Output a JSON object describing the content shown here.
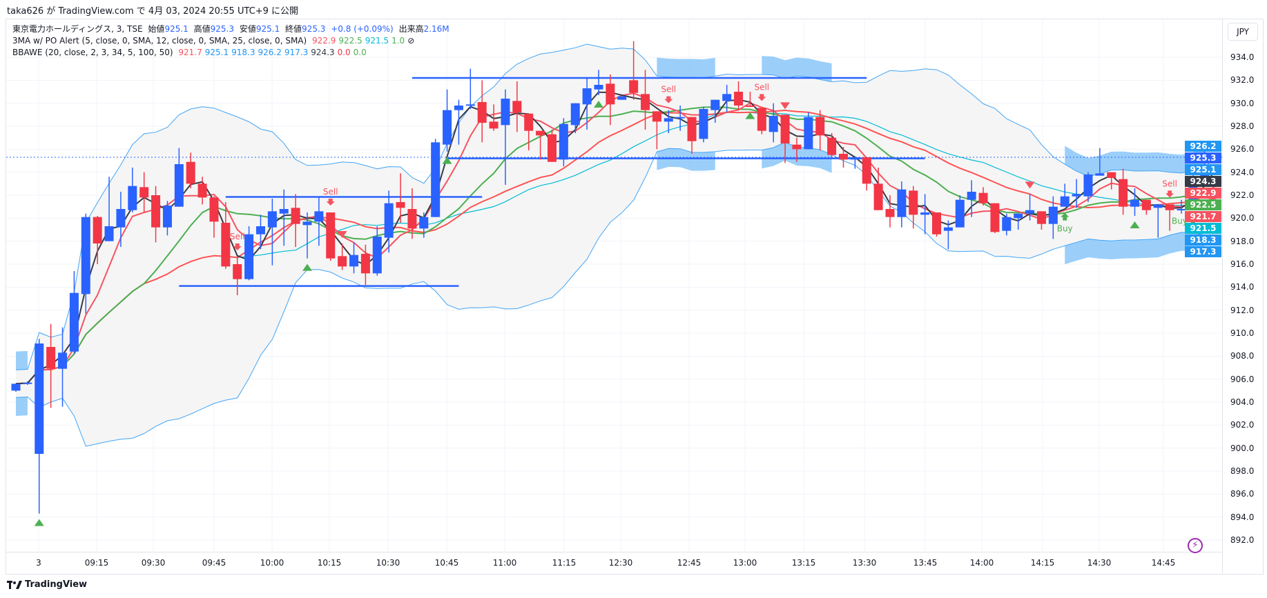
{
  "header": {
    "published": "taka626 が TradingView.com で 4月 03, 2024 20:55 UTC+9 に公開"
  },
  "legend": {
    "symbol": "東京電力ホールディングス, 3, TSE",
    "open_label": "始値",
    "open": "925.1",
    "high_label": "高値",
    "high": "925.3",
    "low_label": "安値",
    "low": "925.1",
    "close_label": "終値",
    "close": "925.3",
    "change": "+0.8 (+0.09%)",
    "volume_label": "出来高",
    "volume": "2.16M",
    "ma_name": "3MA w/ PO Alert (5, close, 0, SMA, 12, close, 0, SMA, 25, close, 0, SMA)",
    "ma_values": [
      {
        "v": "922.9",
        "c": "#f7525f"
      },
      {
        "v": "922.5",
        "c": "#4caf50"
      },
      {
        "v": "921.5",
        "c": "#00bcd4"
      },
      {
        "v": "1.0",
        "c": "#4caf50"
      }
    ],
    "ma_hidden_icon": "⊘",
    "bb_name": "BBAWE (20, close, 2, 3, 34, 5, 100, 50)",
    "bb_values": [
      {
        "v": "921.7",
        "c": "#f7525f"
      },
      {
        "v": "925.1",
        "c": "#2196f3"
      },
      {
        "v": "918.3",
        "c": "#2196f3"
      },
      {
        "v": "926.2",
        "c": "#2196f3"
      },
      {
        "v": "917.3",
        "c": "#2196f3"
      },
      {
        "v": "924.3",
        "c": "#363a45"
      },
      {
        "v": "0.0",
        "c": "#f23645"
      },
      {
        "v": "0.0",
        "c": "#4caf50"
      }
    ]
  },
  "currency_button": "JPY",
  "price_tags": [
    {
      "v": "926.2",
      "c": "#2196f3"
    },
    {
      "v": "925.3",
      "c": "#2962ff"
    },
    {
      "v": "925.1",
      "c": "#2196f3"
    },
    {
      "v": "924.3",
      "c": "#363a45"
    },
    {
      "v": "922.9",
      "c": "#f7525f"
    },
    {
      "v": "922.5",
      "c": "#4caf50"
    },
    {
      "v": "921.7",
      "c": "#f7525f"
    },
    {
      "v": "921.5",
      "c": "#00bcd4"
    },
    {
      "v": "918.3",
      "c": "#2196f3"
    },
    {
      "v": "917.3",
      "c": "#2196f3"
    }
  ],
  "footer": {
    "brand": "TradingView"
  },
  "colors": {
    "up": "#2962ff",
    "down": "#f23645",
    "sma_fast": "#f7525f",
    "sma_mid": "#4caf50",
    "sma_slow": "#00bcd4",
    "bb_basis": "#ff5252",
    "bb_band": "#42a5f5",
    "fast_line": "#363a45",
    "squeeze": "#90caf9",
    "band_fill": "#f5f5f5",
    "level": "#2962ff",
    "buy": "#4caf50",
    "sell": "#f7525f"
  },
  "chart_data": {
    "type": "candlestick",
    "title": "",
    "y_ticks": [
      "934.0",
      "932.0",
      "930.0",
      "928.0",
      "926.0",
      "924.0",
      "922.0",
      "920.0",
      "918.0",
      "916.0",
      "914.0",
      "912.0",
      "910.0",
      "908.0",
      "906.0",
      "904.0",
      "902.0",
      "900.0",
      "898.0",
      "896.0",
      "894.0",
      "892.0"
    ],
    "ylim": [
      891.2,
      936.8
    ],
    "x_ticks": [
      "3",
      "09:15",
      "09:30",
      "09:45",
      "10:00",
      "10:15",
      "10:30",
      "10:45",
      "11:00",
      "11:15",
      "12:30",
      "12:45",
      "13:00",
      "13:15",
      "13:30",
      "13:45",
      "14:00",
      "14:15",
      "14:30",
      "14:45"
    ],
    "grid": true,
    "last_price": 925.3,
    "ohlc": [
      [
        905.0,
        905.6,
        904.9,
        905.6
      ],
      [
        905.6,
        905.8,
        905.5,
        905.7
      ],
      [
        899.5,
        909.5,
        894.3,
        909.1
      ],
      [
        908.8,
        910.8,
        903.5,
        906.9
      ],
      [
        906.9,
        910.5,
        903.6,
        908.3
      ],
      [
        908.4,
        915.4,
        908.2,
        913.5
      ],
      [
        913.4,
        920.4,
        911.7,
        920.1
      ],
      [
        920.1,
        920.2,
        916.0,
        917.8
      ],
      [
        918.0,
        923.6,
        918.0,
        919.3
      ],
      [
        919.2,
        922.3,
        917.5,
        920.8
      ],
      [
        920.7,
        924.4,
        920.5,
        922.8
      ],
      [
        922.7,
        924.0,
        920.5,
        921.8
      ],
      [
        922.0,
        922.8,
        917.9,
        919.2
      ],
      [
        919.2,
        921.5,
        918.5,
        921.1
      ],
      [
        921.0,
        926.1,
        921.0,
        924.7
      ],
      [
        924.9,
        925.7,
        922.6,
        923.0
      ],
      [
        923.0,
        923.6,
        921.2,
        921.8
      ],
      [
        921.8,
        921.9,
        918.3,
        919.7
      ],
      [
        919.6,
        921.4,
        915.6,
        915.8
      ],
      [
        916.0,
        916.6,
        913.3,
        914.7
      ],
      [
        914.7,
        919.3,
        914.6,
        918.6
      ],
      [
        918.6,
        920.3,
        917.3,
        919.3
      ],
      [
        919.2,
        921.7,
        915.9,
        920.6
      ],
      [
        920.4,
        922.5,
        917.6,
        920.8
      ],
      [
        920.9,
        922.1,
        917.5,
        919.5
      ],
      [
        919.4,
        920.5,
        916.5,
        919.7
      ],
      [
        919.7,
        921.8,
        917.6,
        920.6
      ],
      [
        920.5,
        920.5,
        916.3,
        916.5
      ],
      [
        916.7,
        917.8,
        915.5,
        915.8
      ],
      [
        915.8,
        917.9,
        915.2,
        916.8
      ],
      [
        916.9,
        917.7,
        914.2,
        915.2
      ],
      [
        915.2,
        919.3,
        915.0,
        918.4
      ],
      [
        918.3,
        922.4,
        917.0,
        921.3
      ],
      [
        921.4,
        923.9,
        919.6,
        920.9
      ],
      [
        920.8,
        922.6,
        918.2,
        919.1
      ],
      [
        919.1,
        920.5,
        918.3,
        920.1
      ],
      [
        920.1,
        926.9,
        920.1,
        926.6
      ],
      [
        926.4,
        931.2,
        925.8,
        929.4
      ],
      [
        929.4,
        930.3,
        926.4,
        929.8
      ],
      [
        929.8,
        933.0,
        929.5,
        929.9
      ],
      [
        930.1,
        932.0,
        926.6,
        928.3
      ],
      [
        928.4,
        929.9,
        927.6,
        927.8
      ],
      [
        928.1,
        931.2,
        922.9,
        930.4
      ],
      [
        930.2,
        931.9,
        927.5,
        929.2
      ],
      [
        929.1,
        929.1,
        925.9,
        927.6
      ],
      [
        927.6,
        927.6,
        925.1,
        927.2
      ],
      [
        927.3,
        927.7,
        924.9,
        924.9
      ],
      [
        925.1,
        928.7,
        924.5,
        928.2
      ],
      [
        928.1,
        930.0,
        927.4,
        930.0
      ],
      [
        929.9,
        932.2,
        927.7,
        931.3
      ],
      [
        931.2,
        932.9,
        930.7,
        931.6
      ],
      [
        931.7,
        932.5,
        928.1,
        929.9
      ],
      [
        930.3,
        930.6,
        930.3,
        930.6
      ],
      [
        932.0,
        935.4,
        930.3,
        930.9
      ],
      [
        930.8,
        932.9,
        927.7,
        929.4
      ],
      [
        929.3,
        929.3,
        926.0,
        928.4
      ],
      [
        928.4,
        929.4,
        927.4,
        928.7
      ],
      [
        928.7,
        929.8,
        927.6,
        928.8
      ],
      [
        928.8,
        928.8,
        925.6,
        926.7
      ],
      [
        926.9,
        929.7,
        926.6,
        929.5
      ],
      [
        929.4,
        930.3,
        928.3,
        930.3
      ],
      [
        930.2,
        931.6,
        929.2,
        930.8
      ],
      [
        931.0,
        931.9,
        929.4,
        929.8
      ],
      [
        929.8,
        931.0,
        929.7,
        929.7
      ],
      [
        929.6,
        929.6,
        927.3,
        927.6
      ],
      [
        927.5,
        930.0,
        926.6,
        928.9
      ],
      [
        929.0,
        929.0,
        924.8,
        926.5
      ],
      [
        926.4,
        927.0,
        924.9,
        926.0
      ],
      [
        926.0,
        929.2,
        926.0,
        928.8
      ],
      [
        928.8,
        929.4,
        925.9,
        927.2
      ],
      [
        927.0,
        927.4,
        925.3,
        925.5
      ],
      [
        925.6,
        926.2,
        924.4,
        925.1
      ],
      [
        925.1,
        925.3,
        924.3,
        925.3
      ],
      [
        925.3,
        925.3,
        922.4,
        923.0
      ],
      [
        923.0,
        924.4,
        920.7,
        920.7
      ],
      [
        920.8,
        922.0,
        919.2,
        920.1
      ],
      [
        920.1,
        923.2,
        919.2,
        922.5
      ],
      [
        922.4,
        922.8,
        919.1,
        920.3
      ],
      [
        920.3,
        922.1,
        918.6,
        920.5
      ],
      [
        920.5,
        920.5,
        918.4,
        918.6
      ],
      [
        918.9,
        919.8,
        917.3,
        919.2
      ],
      [
        919.2,
        922.0,
        919.2,
        921.6
      ],
      [
        921.6,
        923.3,
        920.1,
        922.3
      ],
      [
        922.2,
        922.7,
        921.1,
        921.3
      ],
      [
        921.3,
        921.3,
        918.7,
        918.8
      ],
      [
        918.9,
        920.4,
        918.5,
        920.1
      ],
      [
        920.0,
        920.4,
        919.0,
        920.4
      ],
      [
        920.4,
        922.1,
        919.8,
        920.7
      ],
      [
        920.6,
        920.6,
        919.0,
        919.5
      ],
      [
        919.5,
        921.9,
        918.2,
        921.0
      ],
      [
        921.0,
        923.0,
        921.0,
        921.9
      ],
      [
        921.9,
        923.4,
        920.9,
        922.1
      ],
      [
        921.9,
        924.0,
        921.4,
        923.8
      ],
      [
        923.7,
        926.1,
        923.7,
        923.9
      ],
      [
        924.0,
        924.0,
        922.5,
        923.5
      ],
      [
        923.4,
        924.3,
        920.3,
        921.0
      ],
      [
        921.0,
        922.6,
        920.2,
        921.6
      ],
      [
        921.6,
        921.6,
        920.3,
        920.7
      ],
      [
        920.9,
        921.2,
        918.3,
        921.2
      ],
      [
        921.2,
        921.2,
        918.9,
        920.7
      ],
      [
        920.7,
        921.6,
        920.4,
        920.8
      ],
      [
        920.7,
        924.0,
        920.7,
        923.2
      ],
      [
        923.1,
        926.2,
        923.0,
        924.5
      ],
      [
        925.1,
        925.3,
        925.1,
        925.3
      ]
    ],
    "indicators": {
      "sma_periods": [
        5,
        12,
        25
      ],
      "bb_period": 20,
      "bb_mult": 2,
      "fast_period": 3
    },
    "squeeze_ranges": [
      [
        0,
        1
      ],
      [
        55,
        60
      ],
      [
        64,
        70
      ],
      [
        90,
        102
      ]
    ],
    "levels": [
      {
        "price": 932.2,
        "from": 34,
        "to": 73
      },
      {
        "price": 925.2,
        "from": 37,
        "to": 78
      },
      {
        "price": 921.85,
        "from": 18,
        "to": 40
      },
      {
        "price": 914.1,
        "from": 14,
        "to": 38
      }
    ],
    "signals": [
      {
        "type": "sell",
        "index": 19,
        "label": "Sell"
      },
      {
        "type": "sell",
        "index": 27,
        "label": "Sell"
      },
      {
        "type": "sell",
        "index": 56,
        "label": "Sell"
      },
      {
        "type": "sell",
        "index": 64,
        "label": "Sell"
      },
      {
        "type": "sell",
        "index": 99,
        "label": "Sell"
      },
      {
        "type": "down",
        "index": 28
      },
      {
        "type": "down",
        "index": 66
      },
      {
        "type": "down",
        "index": 87
      },
      {
        "type": "up",
        "index": 2
      },
      {
        "type": "up",
        "index": 25
      },
      {
        "type": "up",
        "index": 37
      },
      {
        "type": "up",
        "index": 50
      },
      {
        "type": "up",
        "index": 63
      },
      {
        "type": "up",
        "index": 96
      },
      {
        "type": "up",
        "index": 103
      },
      {
        "type": "buy",
        "index": 90,
        "label": "Buy"
      },
      {
        "type": "buy",
        "index": 101,
        "label": "Buy"
      }
    ]
  }
}
